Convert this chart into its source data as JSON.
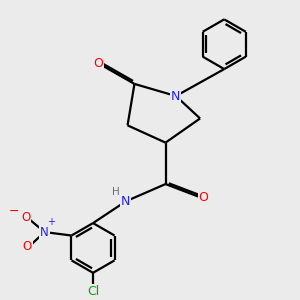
{
  "bg_color": "#ebebeb",
  "bond_color": "#000000",
  "atom_colors": {
    "N": "#2020ff",
    "O": "#ff0000",
    "Cl": "#00aa00",
    "H": "#607080",
    "C": "#000000"
  },
  "lw": 1.6
}
